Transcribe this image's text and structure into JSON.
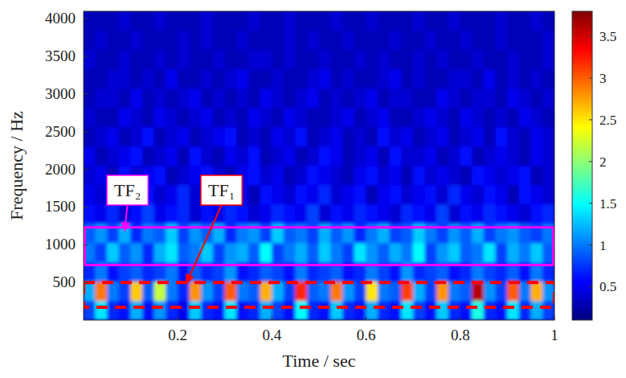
{
  "chart_data": {
    "type": "heatmap",
    "x_label": "Time / sec",
    "y_label": "Frequency / Hz",
    "xlim": [
      0,
      1
    ],
    "xticks": [
      0.2,
      0.4,
      0.6,
      0.8,
      1
    ],
    "ylim": [
      0,
      4096
    ],
    "yticks": [
      500,
      1000,
      1500,
      2000,
      2500,
      3000,
      3500,
      4000
    ],
    "time_bins": [
      0,
      0.025,
      0.05,
      0.075,
      0.1,
      0.125,
      0.15,
      0.175,
      0.2,
      0.225,
      0.25,
      0.275,
      0.3,
      0.325,
      0.35,
      0.375,
      0.4,
      0.425,
      0.45,
      0.475,
      0.5,
      0.525,
      0.55,
      0.575,
      0.6,
      0.625,
      0.65,
      0.675,
      0.7,
      0.725,
      0.75,
      0.775,
      0.8,
      0.825,
      0.85,
      0.875,
      0.9,
      0.925,
      0.95,
      0.975,
      1
    ],
    "freq_bins": [
      0,
      256,
      512,
      768,
      1024,
      1280,
      1536,
      1792,
      2048,
      2304,
      2560,
      2816,
      3072,
      3328,
      3584,
      3840,
      4096
    ],
    "z": [
      [
        0.8,
        1.4,
        0.7,
        0.6,
        1.2,
        0.6,
        1.1,
        0.7,
        0.5,
        1.3,
        0.7,
        0.6,
        1.4,
        0.6,
        0.7,
        1.2,
        0.8,
        0.6,
        1.5,
        0.7,
        0.6,
        1.3,
        0.7,
        0.6,
        1.2,
        0.7,
        0.6,
        1.4,
        0.8,
        0.6,
        1.3,
        0.7,
        0.6,
        1.6,
        0.7,
        0.6,
        1.4,
        0.7,
        1.2,
        0.8
      ],
      [
        1.2,
        2.9,
        1.0,
        0.8,
        2.6,
        0.9,
        2.2,
        1.0,
        0.7,
        2.8,
        1.1,
        0.8,
        3.0,
        1.0,
        0.9,
        2.7,
        1.2,
        0.8,
        3.2,
        0.9,
        1.0,
        2.9,
        1.1,
        0.8,
        2.5,
        1.0,
        0.9,
        3.1,
        1.2,
        0.8,
        2.8,
        1.0,
        0.9,
        3.6,
        1.1,
        0.8,
        3.0,
        1.0,
        2.7,
        1.1
      ],
      [
        0.7,
        1.0,
        0.6,
        0.8,
        0.9,
        0.7,
        0.8,
        1.0,
        0.6,
        0.9,
        0.7,
        0.8,
        1.1,
        0.6,
        0.7,
        0.9,
        0.8,
        0.6,
        1.0,
        0.7,
        0.8,
        0.9,
        0.6,
        0.7,
        1.0,
        0.8,
        0.6,
        1.1,
        0.7,
        0.8,
        0.9,
        0.6,
        0.7,
        1.0,
        0.8,
        0.7,
        0.9,
        0.6,
        1.0,
        0.7
      ],
      [
        1.0,
        0.8,
        1.3,
        0.9,
        1.1,
        0.7,
        1.2,
        1.4,
        0.9,
        1.0,
        1.3,
        0.8,
        1.1,
        1.2,
        0.9,
        1.5,
        0.8,
        1.0,
        1.2,
        0.9,
        1.3,
        1.0,
        0.8,
        1.4,
        1.1,
        0.9,
        1.2,
        1.0,
        1.5,
        0.8,
        1.1,
        1.3,
        0.9,
        1.0,
        1.4,
        0.8,
        1.2,
        1.0,
        1.3,
        0.9
      ],
      [
        0.9,
        1.1,
        0.8,
        1.2,
        0.7,
        1.0,
        0.9,
        1.3,
        0.8,
        1.1,
        0.9,
        1.2,
        0.7,
        1.0,
        1.1,
        0.8,
        1.3,
        0.9,
        1.0,
        0.8,
        1.2,
        0.9,
        1.1,
        0.7,
        1.0,
        1.2,
        0.8,
        0.9,
        1.3,
        1.0,
        0.8,
        1.1,
        0.9,
        1.2,
        0.8,
        1.0,
        1.1,
        0.9,
        0.8,
        1.0
      ],
      [
        0.6,
        0.5,
        0.7,
        0.4,
        0.6,
        0.8,
        0.5,
        0.6,
        0.7,
        0.4,
        0.6,
        0.5,
        0.7,
        0.6,
        0.4,
        0.5,
        0.7,
        0.6,
        0.5,
        0.8,
        0.4,
        0.6,
        0.5,
        0.7,
        0.6,
        0.5,
        0.4,
        0.7,
        0.6,
        0.5,
        0.8,
        0.4,
        0.6,
        0.5,
        0.7,
        0.6,
        0.5,
        0.4,
        0.6,
        0.7
      ],
      [
        0.5,
        0.4,
        0.6,
        0.5,
        0.3,
        0.6,
        0.4,
        0.5,
        0.7,
        0.4,
        0.5,
        0.6,
        0.4,
        0.5,
        0.3,
        0.6,
        0.5,
        0.4,
        0.6,
        0.5,
        0.7,
        0.4,
        0.5,
        0.6,
        0.3,
        0.5,
        0.6,
        0.4,
        0.5,
        0.6,
        0.4,
        0.7,
        0.5,
        0.4,
        0.6,
        0.5,
        0.3,
        0.6,
        0.5,
        0.4
      ],
      [
        0.4,
        0.5,
        0.3,
        0.6,
        0.4,
        0.5,
        0.6,
        0.3,
        0.4,
        0.5,
        0.6,
        0.4,
        0.3,
        0.5,
        0.6,
        0.4,
        0.5,
        0.3,
        0.4,
        0.6,
        0.5,
        0.4,
        0.3,
        0.5,
        0.6,
        0.4,
        0.5,
        0.3,
        0.6,
        0.4,
        0.5,
        0.4,
        0.3,
        0.6,
        0.5,
        0.4,
        0.5,
        0.6,
        0.3,
        0.4
      ],
      [
        0.5,
        0.3,
        0.4,
        0.5,
        0.6,
        0.3,
        0.4,
        0.5,
        0.3,
        0.6,
        0.4,
        0.3,
        0.5,
        0.4,
        0.6,
        0.3,
        0.4,
        0.5,
        0.3,
        0.4,
        0.6,
        0.5,
        0.3,
        0.4,
        0.5,
        0.3,
        0.6,
        0.4,
        0.4,
        0.5,
        0.3,
        0.4,
        0.6,
        0.3,
        0.4,
        0.5,
        0.4,
        0.3,
        0.5,
        0.4
      ],
      [
        0.3,
        0.4,
        0.5,
        0.3,
        0.4,
        0.6,
        0.3,
        0.4,
        0.5,
        0.3,
        0.4,
        0.5,
        0.6,
        0.3,
        0.4,
        0.3,
        0.5,
        0.4,
        0.6,
        0.3,
        0.4,
        0.5,
        0.3,
        0.4,
        0.3,
        0.6,
        0.4,
        0.5,
        0.3,
        0.4,
        0.5,
        0.3,
        0.4,
        0.5,
        0.3,
        0.6,
        0.4,
        0.3,
        0.5,
        0.4
      ],
      [
        0.4,
        0.3,
        0.3,
        0.5,
        0.4,
        0.3,
        0.5,
        0.4,
        0.3,
        0.4,
        0.5,
        0.3,
        0.4,
        0.3,
        0.5,
        0.4,
        0.3,
        0.5,
        0.4,
        0.3,
        0.3,
        0.4,
        0.5,
        0.3,
        0.4,
        0.5,
        0.3,
        0.3,
        0.4,
        0.5,
        0.4,
        0.3,
        0.5,
        0.4,
        0.3,
        0.4,
        0.3,
        0.5,
        0.4,
        0.3
      ],
      [
        0.3,
        0.4,
        0.4,
        0.3,
        0.5,
        0.3,
        0.4,
        0.3,
        0.4,
        0.5,
        0.3,
        0.4,
        0.3,
        0.4,
        0.3,
        0.5,
        0.4,
        0.3,
        0.4,
        0.5,
        0.3,
        0.4,
        0.3,
        0.4,
        0.5,
        0.3,
        0.4,
        0.4,
        0.3,
        0.3,
        0.5,
        0.4,
        0.3,
        0.4,
        0.4,
        0.3,
        0.5,
        0.4,
        0.3,
        0.4
      ],
      [
        0.3,
        0.3,
        0.4,
        0.4,
        0.3,
        0.4,
        0.3,
        0.5,
        0.3,
        0.3,
        0.4,
        0.3,
        0.4,
        0.5,
        0.3,
        0.3,
        0.4,
        0.3,
        0.3,
        0.4,
        0.5,
        0.3,
        0.4,
        0.3,
        0.3,
        0.4,
        0.5,
        0.3,
        0.4,
        0.3,
        0.3,
        0.4,
        0.4,
        0.3,
        0.5,
        0.3,
        0.4,
        0.3,
        0.4,
        0.3
      ],
      [
        0.4,
        0.3,
        0.3,
        0.4,
        0.3,
        0.3,
        0.4,
        0.3,
        0.4,
        0.3,
        0.3,
        0.4,
        0.3,
        0.3,
        0.4,
        0.4,
        0.3,
        0.4,
        0.3,
        0.3,
        0.4,
        0.3,
        0.3,
        0.4,
        0.3,
        0.4,
        0.3,
        0.3,
        0.4,
        0.3,
        0.4,
        0.3,
        0.3,
        0.4,
        0.3,
        0.3,
        0.4,
        0.3,
        0.3,
        0.4
      ],
      [
        0.3,
        0.4,
        0.3,
        0.3,
        0.4,
        0.3,
        0.3,
        0.3,
        0.4,
        0.3,
        0.4,
        0.3,
        0.3,
        0.4,
        0.3,
        0.3,
        0.3,
        0.4,
        0.3,
        0.4,
        0.3,
        0.3,
        0.4,
        0.3,
        0.3,
        0.3,
        0.4,
        0.3,
        0.3,
        0.4,
        0.3,
        0.3,
        0.4,
        0.3,
        0.3,
        0.4,
        0.3,
        0.3,
        0.3,
        0.4
      ],
      [
        0.3,
        0.3,
        0.3,
        0.4,
        0.3,
        0.3,
        0.4,
        0.3,
        0.3,
        0.3,
        0.4,
        0.3,
        0.3,
        0.3,
        0.4,
        0.3,
        0.3,
        0.4,
        0.3,
        0.3,
        0.3,
        0.4,
        0.3,
        0.3,
        0.4,
        0.3,
        0.3,
        0.3,
        0.4,
        0.3,
        0.3,
        0.4,
        0.3,
        0.3,
        0.3,
        0.4,
        0.3,
        0.3,
        0.4,
        0.3
      ]
    ],
    "colorbar": {
      "range": [
        0.1,
        3.8
      ],
      "ticks": [
        0.5,
        1,
        1.5,
        2,
        2.5,
        3,
        3.5
      ]
    },
    "regions": [
      {
        "label": "TF₂",
        "color": "#ff00ff",
        "line_style": "solid",
        "time_range": [
          0,
          1
        ],
        "freq_range": [
          730,
          1230
        ]
      },
      {
        "label": "TF₁",
        "color": "#ff0000",
        "line_style": "dashed",
        "time_range": [
          0,
          1
        ],
        "freq_range": [
          170,
          500
        ]
      }
    ]
  }
}
